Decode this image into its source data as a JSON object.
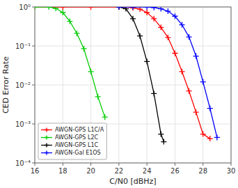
{
  "chart_data": {
    "type": "line",
    "log": "y",
    "grid": true,
    "legend": "lower left",
    "xlabel": "C/N0 [dBHz]",
    "ylabel": "CED Error Rate",
    "xlim": [
      16,
      30
    ],
    "xticks": [
      16,
      18,
      20,
      22,
      24,
      26,
      28,
      30
    ],
    "ylim": [
      0.0001,
      1
    ],
    "yticks": [
      {
        "value": 0.0001,
        "label": "10⁻⁴"
      },
      {
        "value": 0.001,
        "label": "10⁻³"
      },
      {
        "value": 0.01,
        "label": "10⁻²"
      },
      {
        "value": 0.1,
        "label": "10⁻¹"
      },
      {
        "value": 1,
        "label": "10⁰"
      }
    ],
    "series": [
      {
        "name": "AWGN-GPS L1C/A",
        "color": "#ff0000",
        "marker": "plus",
        "x": [
          16,
          18,
          20,
          22,
          22.5,
          23,
          23.5,
          24,
          24.5,
          25,
          25.5,
          26,
          26.5,
          27,
          27.5,
          28,
          28.5
        ],
        "values": [
          1.0,
          1.0,
          1.0,
          1.0,
          1.0,
          0.95,
          0.88,
          0.72,
          0.5,
          0.3,
          0.165,
          0.065,
          0.022,
          0.007,
          0.002,
          0.00055,
          0.00042
        ]
      },
      {
        "name": "AWGN-GPS L2C",
        "color": "#00cc00",
        "marker": "plus",
        "x": [
          16,
          17,
          17.5,
          18,
          18.5,
          19,
          19.5,
          20,
          20.5,
          21
        ],
        "values": [
          1.0,
          1.0,
          0.92,
          0.72,
          0.43,
          0.21,
          0.085,
          0.022,
          0.005,
          0.0015
        ]
      },
      {
        "name": "AWGN-GPS L1C",
        "color": "#000000",
        "marker": "plus",
        "x": [
          22,
          22.5,
          23,
          23.5,
          24,
          24.5,
          25,
          25.2
        ],
        "values": [
          1.0,
          0.9,
          0.5,
          0.18,
          0.04,
          0.006,
          0.00055,
          0.00035
        ]
      },
      {
        "name": "AWGN-Gal E1OS",
        "color": "#0000ff",
        "marker": "plus",
        "x": [
          22,
          23,
          24,
          24.5,
          25,
          25.5,
          26,
          26.5,
          27,
          27.5,
          28,
          28.5,
          29
        ],
        "values": [
          1.0,
          1.0,
          1.0,
          0.97,
          0.9,
          0.78,
          0.58,
          0.35,
          0.17,
          0.055,
          0.012,
          0.0025,
          0.00045
        ]
      }
    ]
  }
}
